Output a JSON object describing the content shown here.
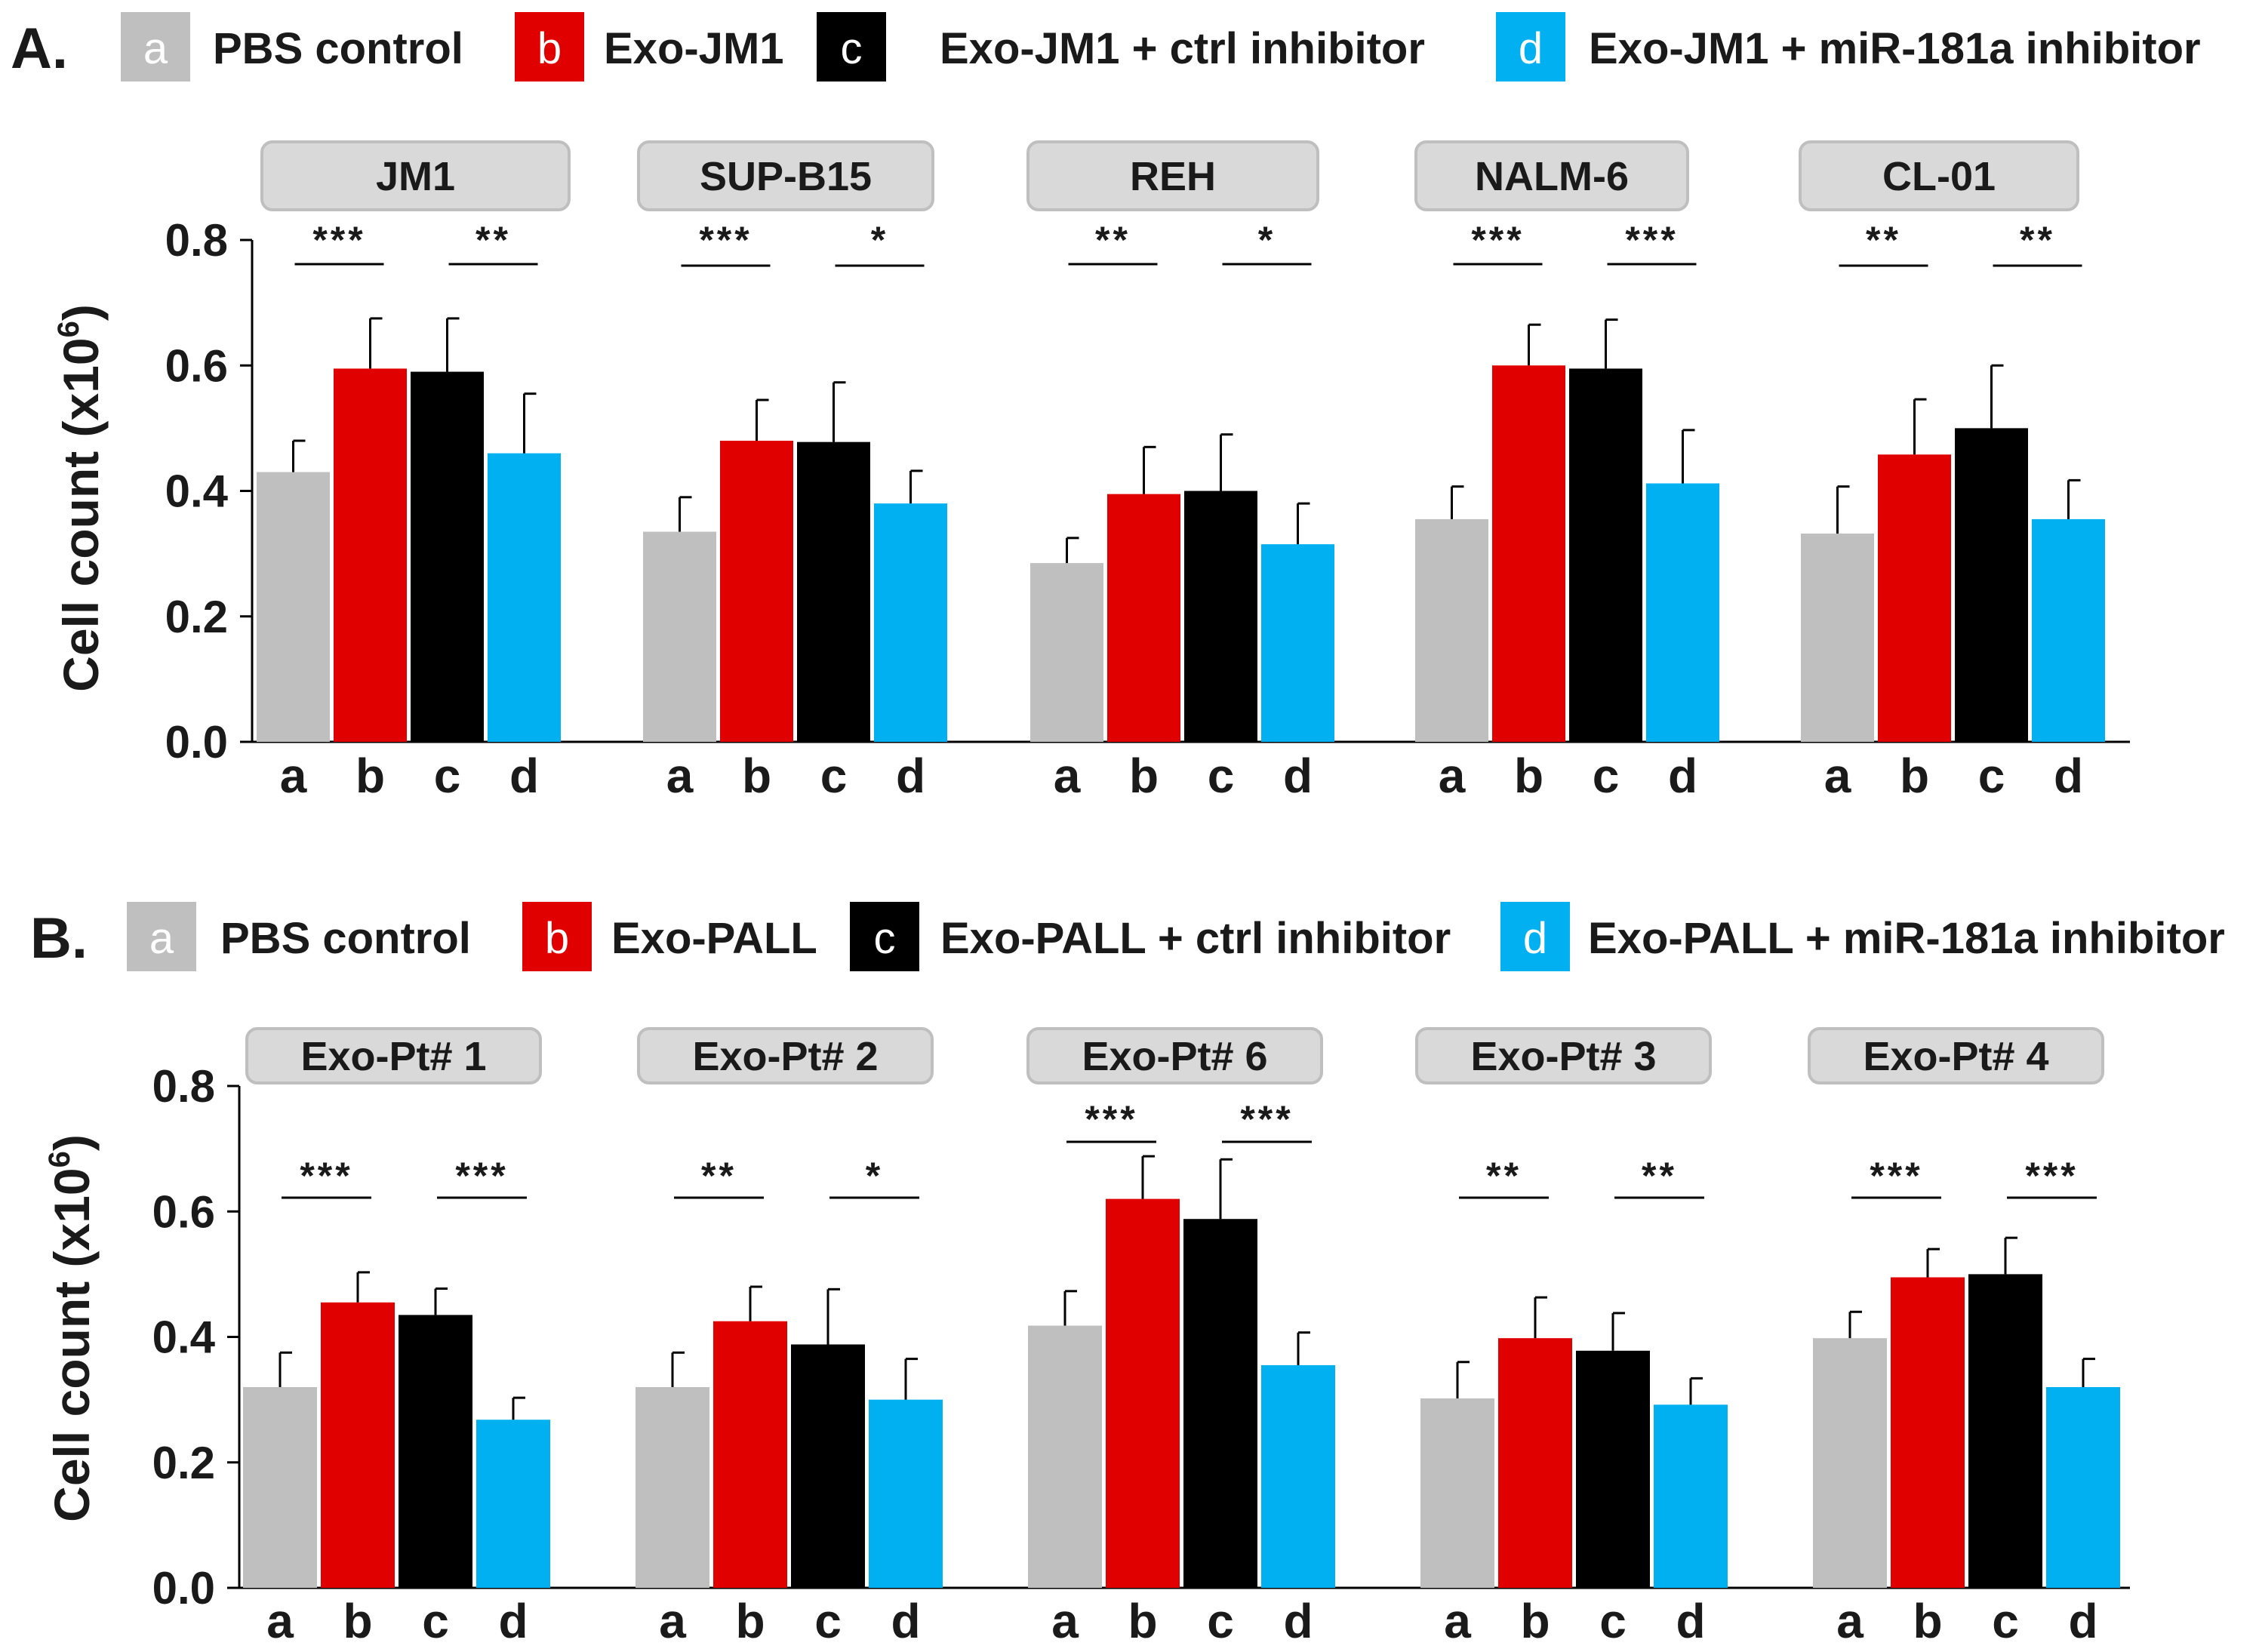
{
  "chart_data": [
    {
      "type": "bar",
      "panel": "A.",
      "ylabel": "Cell count (x10",
      "ylabel_sup": "6",
      "ylabel_close": ")",
      "ylim": [
        0,
        0.8
      ],
      "yticks": [
        "0.0",
        "0.2",
        "0.4",
        "0.6",
        "0.8"
      ],
      "category_codes": [
        "a",
        "b",
        "c",
        "d"
      ],
      "legend": [
        {
          "code": "a",
          "label": "PBS control",
          "color": "#bfbfbf"
        },
        {
          "code": "b",
          "label": "Exo-JM1",
          "color": "#e00000"
        },
        {
          "code": "c",
          "label": "Exo-JM1 + ctrl inhibitor",
          "color": "#000000"
        },
        {
          "code": "d",
          "label": "Exo-JM1 + miR-181a inhibitor",
          "color": "#00b0f0"
        }
      ],
      "groups": [
        {
          "name": "JM1",
          "values": [
            0.43,
            0.595,
            0.59,
            0.46
          ],
          "errors": [
            0.05,
            0.08,
            0.085,
            0.095
          ],
          "sig": [
            "***",
            "**"
          ]
        },
        {
          "name": "SUP-B15",
          "values": [
            0.335,
            0.48,
            0.478,
            0.38
          ],
          "errors": [
            0.055,
            0.065,
            0.095,
            0.052
          ],
          "sig": [
            "***",
            "*"
          ]
        },
        {
          "name": "REH",
          "values": [
            0.285,
            0.395,
            0.4,
            0.315
          ],
          "errors": [
            0.04,
            0.075,
            0.09,
            0.065
          ],
          "sig": [
            "**",
            "*"
          ]
        },
        {
          "name": "NALM-6",
          "values": [
            0.355,
            0.6,
            0.595,
            0.412
          ],
          "errors": [
            0.052,
            0.065,
            0.078,
            0.085
          ],
          "sig": [
            "***",
            "***"
          ]
        },
        {
          "name": "CL-01",
          "values": [
            0.332,
            0.458,
            0.5,
            0.355
          ],
          "errors": [
            0.075,
            0.088,
            0.1,
            0.062
          ],
          "sig": [
            "**",
            "**"
          ]
        }
      ]
    },
    {
      "type": "bar",
      "panel": "B.",
      "ylabel": "Cell count (x10",
      "ylabel_sup": "6",
      "ylabel_close": ")",
      "ylim": [
        0,
        0.8
      ],
      "yticks": [
        "0.0",
        "0.2",
        "0.4",
        "0.6",
        "0.8"
      ],
      "category_codes": [
        "a",
        "b",
        "c",
        "d"
      ],
      "legend": [
        {
          "code": "a",
          "label": "PBS control",
          "color": "#bfbfbf"
        },
        {
          "code": "b",
          "label": "Exo-PALL",
          "color": "#e00000"
        },
        {
          "code": "c",
          "label": "Exo-PALL + ctrl inhibitor",
          "color": "#000000"
        },
        {
          "code": "d",
          "label": "Exo-PALL + miR-181a inhibitor",
          "color": "#00b0f0"
        }
      ],
      "groups": [
        {
          "name": "Exo-Pt# 1",
          "values": [
            0.32,
            0.455,
            0.435,
            0.268
          ],
          "errors": [
            0.055,
            0.048,
            0.042,
            0.035
          ],
          "sig": [
            "***",
            "***"
          ]
        },
        {
          "name": "Exo-Pt# 2",
          "values": [
            0.32,
            0.425,
            0.388,
            0.3
          ],
          "errors": [
            0.055,
            0.055,
            0.088,
            0.065
          ],
          "sig": [
            "**",
            "*"
          ]
        },
        {
          "name": "Exo-Pt# 6",
          "values": [
            0.418,
            0.62,
            0.588,
            0.355
          ],
          "errors": [
            0.055,
            0.068,
            0.095,
            0.052
          ],
          "sig": [
            "***",
            "***"
          ]
        },
        {
          "name": "Exo-Pt# 3",
          "values": [
            0.302,
            0.398,
            0.378,
            0.292
          ],
          "errors": [
            0.058,
            0.065,
            0.06,
            0.042
          ],
          "sig": [
            "**",
            "**"
          ]
        },
        {
          "name": "Exo-Pt# 4",
          "values": [
            0.398,
            0.495,
            0.5,
            0.32
          ],
          "errors": [
            0.042,
            0.045,
            0.058,
            0.045
          ],
          "sig": [
            "***",
            "***"
          ]
        }
      ]
    }
  ]
}
